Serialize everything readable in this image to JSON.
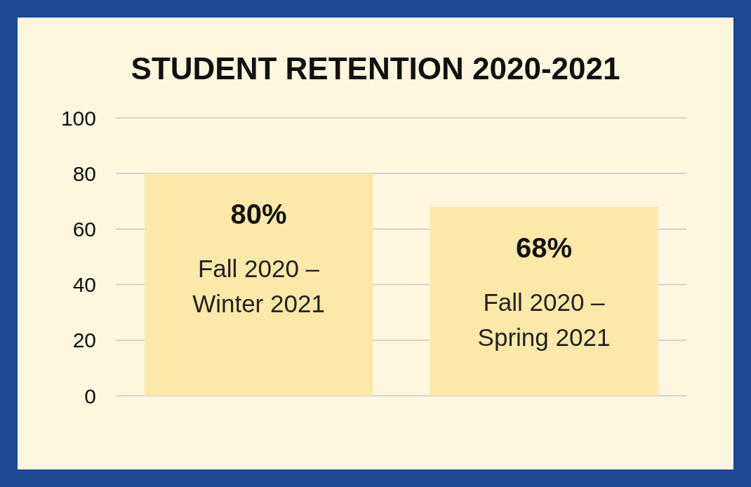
{
  "chart_data": {
    "type": "bar",
    "title": "STUDENT RETENTION 2020-2021",
    "categories": [
      "Fall 2020 – Winter 2021",
      "Fall 2020 – Spring 2021"
    ],
    "values": [
      80,
      68
    ],
    "value_labels": [
      "80%",
      "68%"
    ],
    "color": "#fae9a8",
    "ylim": [
      0,
      100
    ],
    "yticks": [
      0,
      20,
      40,
      60,
      80,
      100
    ],
    "grid": "y"
  }
}
